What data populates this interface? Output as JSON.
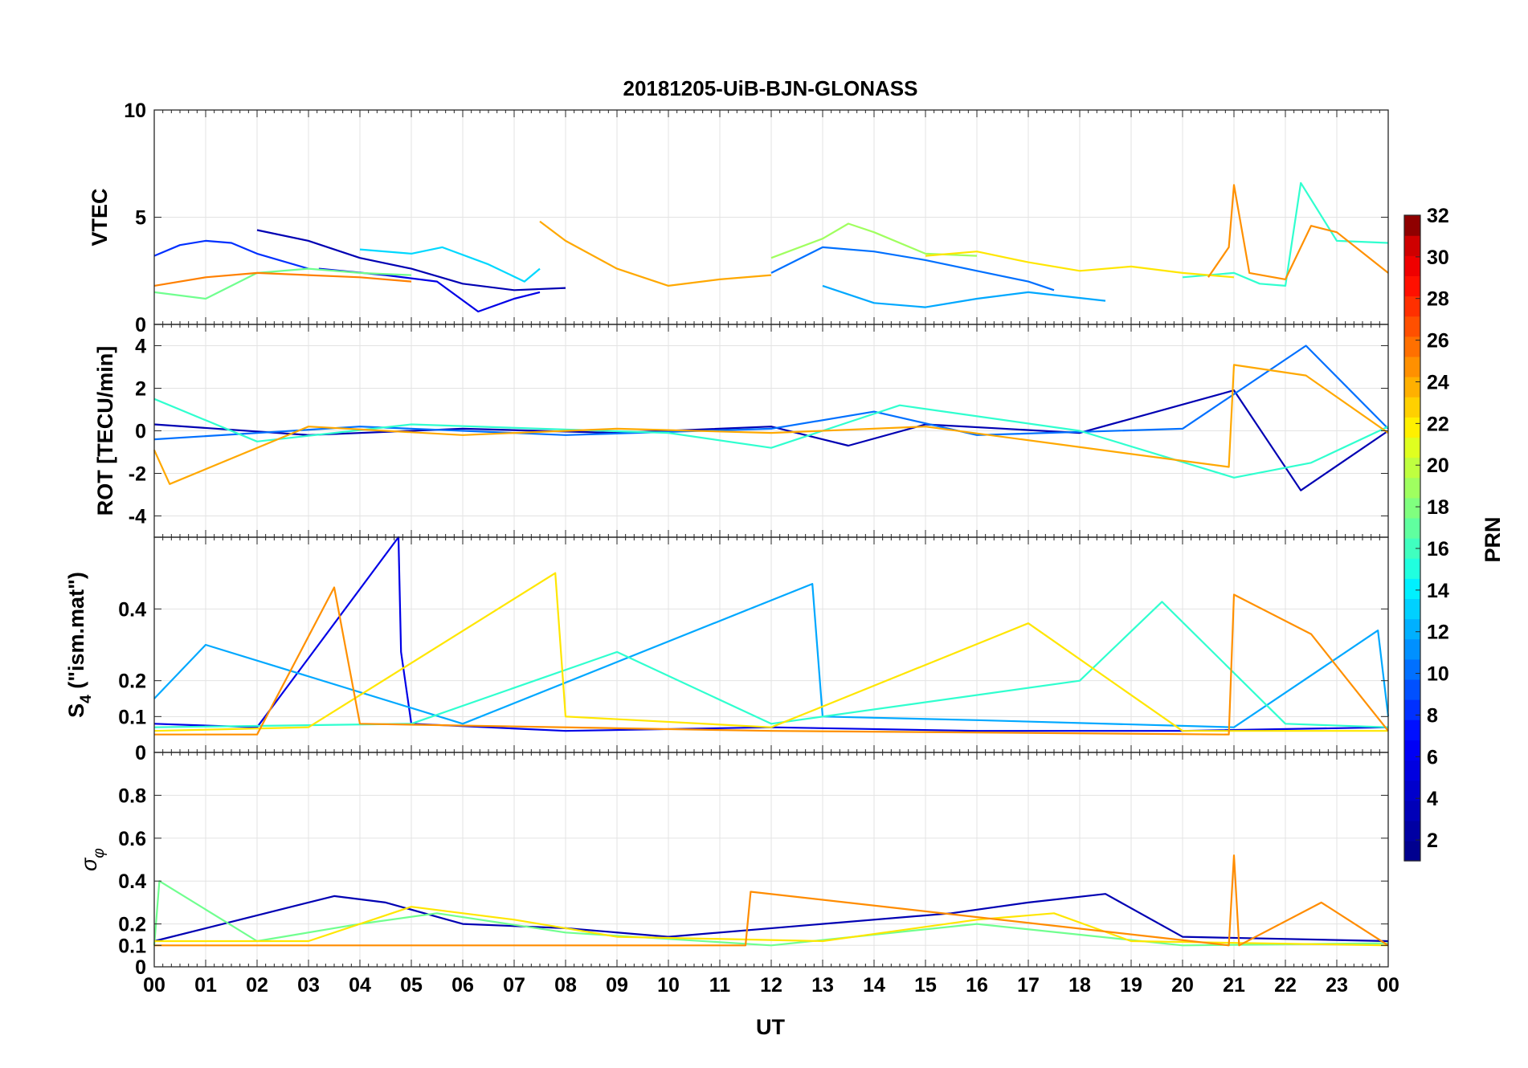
{
  "figure": {
    "title": "20181205-UiB-BJN-GLONASS"
  },
  "chart_data": [
    {
      "type": "line",
      "panel": "VTEC",
      "ylabel": "VTEC",
      "ylim": [
        0,
        10
      ],
      "yticks": [
        0,
        5,
        10
      ],
      "grid": true,
      "series": [
        {
          "prn": 2,
          "color": "#0000b3",
          "x": [
            2.0,
            3.0,
            4.0,
            5.0,
            6.0,
            7.0,
            8.0
          ],
          "y": [
            4.4,
            3.9,
            3.1,
            2.6,
            1.9,
            1.6,
            1.7
          ]
        },
        {
          "prn": 4,
          "color": "#0000e6",
          "x": [
            3.2,
            4.5,
            5.5,
            6.3,
            7.0,
            7.5
          ],
          "y": [
            2.6,
            2.3,
            2.0,
            0.6,
            1.2,
            1.5
          ]
        },
        {
          "prn": 6,
          "color": "#0030ff",
          "x": [
            0.0,
            0.5,
            1.0,
            1.5,
            2.0,
            3.0
          ],
          "y": [
            3.2,
            3.7,
            3.9,
            3.8,
            3.3,
            2.6
          ]
        },
        {
          "prn": 8,
          "color": "#0070ff",
          "x": [
            12.0,
            13.0,
            14.0,
            15.0,
            16.0,
            17.0,
            17.5
          ],
          "y": [
            2.4,
            3.6,
            3.4,
            3.0,
            2.5,
            2.0,
            1.6
          ]
        },
        {
          "prn": 10,
          "color": "#00a8ff",
          "x": [
            13.0,
            14.0,
            15.0,
            16.0,
            17.0,
            18.5
          ],
          "y": [
            1.8,
            1.0,
            0.8,
            1.2,
            1.5,
            1.1
          ]
        },
        {
          "prn": 12,
          "color": "#00d8ff",
          "x": [
            4.0,
            5.0,
            5.6,
            6.5,
            7.2,
            7.5
          ],
          "y": [
            3.5,
            3.3,
            3.6,
            2.8,
            2.0,
            2.6
          ]
        },
        {
          "prn": 14,
          "color": "#30ffcf",
          "x": [
            20.0,
            21.0,
            21.5,
            22.0,
            22.3,
            23.0,
            24.0
          ],
          "y": [
            2.2,
            2.4,
            1.9,
            1.8,
            6.6,
            3.9,
            3.8
          ]
        },
        {
          "prn": 16,
          "color": "#70ff8f",
          "x": [
            0.0,
            1.0,
            2.0,
            3.0,
            4.0,
            5.0
          ],
          "y": [
            1.5,
            1.2,
            2.4,
            2.6,
            2.4,
            2.3
          ]
        },
        {
          "prn": 17,
          "color": "#a0ff5f",
          "x": [
            12.0,
            13.0,
            13.5,
            14.0,
            15.0,
            16.0
          ],
          "y": [
            3.1,
            4.0,
            4.7,
            4.3,
            3.3,
            3.2
          ]
        },
        {
          "prn": 20,
          "color": "#ffe600",
          "x": [
            15.0,
            16.0,
            17.0,
            18.0,
            19.0,
            20.0,
            21.0
          ],
          "y": [
            3.2,
            3.4,
            2.9,
            2.5,
            2.7,
            2.4,
            2.2
          ]
        },
        {
          "prn": 22,
          "color": "#ffa800",
          "x": [
            7.5,
            8.0,
            9.0,
            10.0,
            11.0,
            12.0
          ],
          "y": [
            4.8,
            3.9,
            2.6,
            1.8,
            2.1,
            2.3
          ]
        },
        {
          "prn": 24,
          "color": "#ff8000",
          "x": [
            0.0,
            1.0,
            2.0,
            3.0,
            4.0,
            5.0
          ],
          "y": [
            1.8,
            2.2,
            2.4,
            2.3,
            2.2,
            2.0
          ]
        },
        {
          "prn": 23,
          "color": "#ff9000",
          "x": [
            20.5,
            20.9,
            21.0,
            21.3,
            22.0,
            22.5,
            23.0,
            24.0
          ],
          "y": [
            2.2,
            3.6,
            6.5,
            2.4,
            2.1,
            4.6,
            4.3,
            2.4
          ]
        }
      ]
    },
    {
      "type": "line",
      "panel": "ROT",
      "ylabel": "ROT [TECU/min]",
      "ylim": [
        -5,
        5
      ],
      "yticks": [
        -4,
        -2,
        0,
        2,
        4
      ],
      "grid": true,
      "series": [
        {
          "prn": 2,
          "color": "#0000b3",
          "x": [
            0.0,
            3.0,
            6.0,
            9.0,
            12.0,
            13.5,
            15.0,
            18.0,
            21.0,
            22.3,
            24.0
          ],
          "y": [
            0.3,
            -0.2,
            0.1,
            -0.1,
            0.2,
            -0.7,
            0.3,
            -0.1,
            1.9,
            -2.8,
            0.0
          ]
        },
        {
          "prn": 8,
          "color": "#0070ff",
          "x": [
            0.0,
            4.0,
            8.0,
            12.0,
            14.0,
            16.0,
            20.0,
            22.4,
            24.0
          ],
          "y": [
            -0.4,
            0.2,
            -0.2,
            0.1,
            0.9,
            -0.2,
            0.1,
            4.0,
            0.1
          ]
        },
        {
          "prn": 14,
          "color": "#30ffcf",
          "x": [
            0.0,
            2.0,
            5.0,
            10.0,
            12.0,
            14.5,
            18.0,
            21.0,
            22.5,
            24.0
          ],
          "y": [
            1.5,
            -0.5,
            0.3,
            -0.1,
            -0.8,
            1.2,
            0.0,
            -2.2,
            -1.5,
            0.2
          ]
        },
        {
          "prn": 22,
          "color": "#ffa800",
          "x": [
            0.0,
            0.3,
            3.0,
            6.0,
            9.0,
            12.0,
            15.0,
            20.9,
            21.0,
            22.4,
            24.0
          ],
          "y": [
            -0.9,
            -2.5,
            0.2,
            -0.2,
            0.1,
            -0.1,
            0.2,
            -1.7,
            3.1,
            2.6,
            -0.1
          ]
        }
      ]
    },
    {
      "type": "line",
      "panel": "S4",
      "ylabel_main": "S",
      "ylabel_sub": "4",
      "ylabel_rest": " (\"ism.mat\")",
      "ylim": [
        0,
        0.6
      ],
      "yticks": [
        0,
        0.1,
        0.2,
        0.4
      ],
      "grid": true,
      "series": [
        {
          "prn": 4,
          "color": "#0000e6",
          "x": [
            0.0,
            2.0,
            4.75,
            4.8,
            5.0,
            8.0,
            12.0,
            16.0,
            20.0,
            24.0
          ],
          "y": [
            0.08,
            0.07,
            0.6,
            0.28,
            0.08,
            0.06,
            0.07,
            0.06,
            0.06,
            0.07
          ]
        },
        {
          "prn": 10,
          "color": "#00a8ff",
          "x": [
            0.0,
            1.0,
            6.0,
            12.8,
            13.0,
            16.0,
            21.0,
            23.8,
            24.0
          ],
          "y": [
            0.15,
            0.3,
            0.08,
            0.47,
            0.1,
            0.09,
            0.07,
            0.34,
            0.1
          ]
        },
        {
          "prn": 14,
          "color": "#30ffcf",
          "x": [
            0.0,
            5.0,
            9.0,
            12.0,
            18.0,
            19.6,
            22.0,
            24.0
          ],
          "y": [
            0.07,
            0.08,
            0.28,
            0.08,
            0.2,
            0.42,
            0.08,
            0.07
          ]
        },
        {
          "prn": 20,
          "color": "#ffe600",
          "x": [
            0.0,
            3.0,
            7.8,
            8.0,
            12.0,
            17.0,
            20.0,
            24.0
          ],
          "y": [
            0.06,
            0.07,
            0.5,
            0.1,
            0.07,
            0.36,
            0.06,
            0.06
          ]
        },
        {
          "prn": 23,
          "color": "#ff9000",
          "x": [
            0.0,
            2.0,
            3.5,
            4.0,
            12.0,
            20.9,
            21.0,
            22.5,
            24.0
          ],
          "y": [
            0.05,
            0.05,
            0.46,
            0.08,
            0.06,
            0.05,
            0.44,
            0.33,
            0.06
          ]
        }
      ]
    },
    {
      "type": "line",
      "panel": "SigmaPhi",
      "ylabel_main": "σ",
      "ylabel_sub": "φ",
      "ylim": [
        0,
        1.0
      ],
      "yticks": [
        0,
        0.1,
        0.2,
        0.4,
        0.6,
        0.8
      ],
      "grid": true,
      "series": [
        {
          "prn": 2,
          "color": "#0000b3",
          "x": [
            0.0,
            3.5,
            4.5,
            6.0,
            8.0,
            10.0,
            15.5,
            17.0,
            18.5,
            20.0,
            24.0
          ],
          "y": [
            0.12,
            0.33,
            0.3,
            0.2,
            0.18,
            0.14,
            0.25,
            0.3,
            0.34,
            0.14,
            0.12
          ]
        },
        {
          "prn": 16,
          "color": "#70ff8f",
          "x": [
            0.0,
            0.1,
            2.0,
            4.0,
            5.5,
            8.0,
            12.0,
            16.0,
            20.0,
            24.0
          ],
          "y": [
            0.1,
            0.4,
            0.12,
            0.2,
            0.25,
            0.16,
            0.1,
            0.2,
            0.1,
            0.11
          ]
        },
        {
          "prn": 20,
          "color": "#ffe600",
          "x": [
            0.0,
            3.0,
            5.0,
            7.0,
            9.0,
            13.0,
            16.0,
            17.5,
            19.0,
            24.0
          ],
          "y": [
            0.12,
            0.12,
            0.28,
            0.22,
            0.14,
            0.12,
            0.22,
            0.25,
            0.12,
            0.1
          ]
        },
        {
          "prn": 22,
          "color": "#ff8c00",
          "x": [
            0.0,
            5.0,
            11.5,
            11.6,
            20.9,
            21.0,
            21.1,
            22.7,
            24.0
          ],
          "y": [
            0.1,
            0.1,
            0.1,
            0.35,
            0.1,
            0.52,
            0.1,
            0.3,
            0.1
          ]
        }
      ]
    }
  ],
  "x_axis": {
    "label": "UT",
    "xlim": [
      0,
      24
    ],
    "tick_labels": [
      "00",
      "01",
      "02",
      "03",
      "04",
      "05",
      "06",
      "07",
      "08",
      "09",
      "10",
      "11",
      "12",
      "13",
      "14",
      "15",
      "16",
      "17",
      "18",
      "19",
      "20",
      "21",
      "22",
      "23",
      "00"
    ]
  },
  "colorbar": {
    "label": "PRN",
    "range": [
      1,
      32
    ],
    "tick_labels": [
      "2",
      "4",
      "6",
      "8",
      "10",
      "12",
      "14",
      "16",
      "18",
      "20",
      "22",
      "24",
      "26",
      "28",
      "30",
      "32"
    ],
    "colors": [
      "#00008f",
      "#0000a3",
      "#0000b8",
      "#0000cc",
      "#0000e0",
      "#0000f5",
      "#0010ff",
      "#0030ff",
      "#0050ff",
      "#0070ff",
      "#0090ff",
      "#00b0ff",
      "#00d0ff",
      "#00f0ff",
      "#20ffdf",
      "#40ffbf",
      "#60ff9f",
      "#80ff7f",
      "#9fff60",
      "#bfff40",
      "#dfff20",
      "#fff000",
      "#ffd000",
      "#ffb000",
      "#ff9000",
      "#ff7000",
      "#ff5000",
      "#ff3000",
      "#ff1000",
      "#ef0000",
      "#cf0000",
      "#8f0000"
    ]
  }
}
